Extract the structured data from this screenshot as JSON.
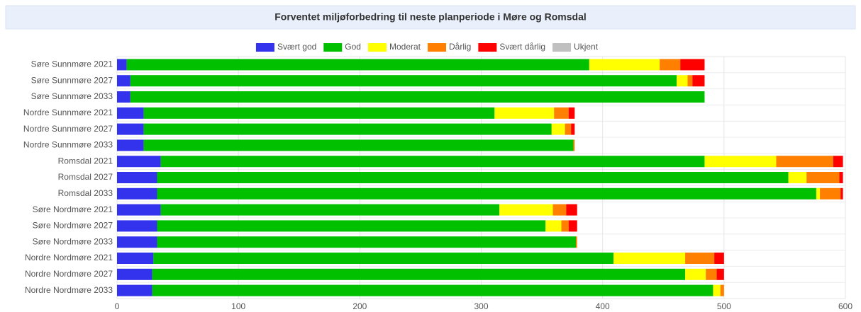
{
  "chart_data": {
    "type": "stacked_barh",
    "title": "Forventet miljøforbedring til neste planperiode i Møre og Romsdal",
    "categories": [
      "Søre Sunnmøre 2021",
      "Søre Sunnmøre 2027",
      "Søre Sunnmøre 2033",
      "Nordre Sunnmøre 2021",
      "Nordre Sunnmøre 2027",
      "Nordre Sunnmøre 2033",
      "Romsdal 2021",
      "Romsdal 2027",
      "Romsdal 2033",
      "Søre Nordmøre 2021",
      "Søre Nordmøre 2027",
      "Søre Nordmøre 2033",
      "Nordre Nordmøre 2021",
      "Nordre Nordmøre 2027",
      "Nordre Nordmøre 2033"
    ],
    "series": [
      {
        "name": "Svært god",
        "color": "#3333ee",
        "values": [
          8,
          11,
          11,
          22,
          22,
          22,
          36,
          33,
          33,
          36,
          33,
          33,
          30,
          29,
          29
        ]
      },
      {
        "name": "God",
        "color": "#00c000",
        "values": [
          381,
          450,
          473,
          289,
          336,
          354,
          448,
          520,
          543,
          279,
          320,
          345,
          379,
          439,
          462
        ]
      },
      {
        "name": "Moderat",
        "color": "#ffff00",
        "values": [
          58,
          9,
          0,
          49,
          11,
          0,
          59,
          15,
          3,
          44,
          13,
          0,
          59,
          17,
          6
        ]
      },
      {
        "name": "Dårlig",
        "color": "#ff8000",
        "values": [
          17,
          4,
          0,
          12,
          5,
          1,
          47,
          27,
          17,
          11,
          6,
          1,
          24,
          9,
          3
        ]
      },
      {
        "name": "Svært dårlig",
        "color": "#ff0000",
        "values": [
          20,
          10,
          0,
          5,
          3,
          0,
          8,
          3,
          2,
          9,
          7,
          0,
          8,
          6,
          0
        ]
      },
      {
        "name": "Ukjent",
        "color": "#c0c0c0",
        "values": [
          0,
          0,
          0,
          0,
          0,
          0,
          0,
          0,
          0,
          0,
          0,
          0,
          0,
          0,
          0
        ]
      }
    ],
    "xlim": [
      0,
      600
    ],
    "xticks": [
      0,
      100,
      200,
      300,
      400,
      500,
      600
    ],
    "grid": true,
    "legend": "top"
  }
}
